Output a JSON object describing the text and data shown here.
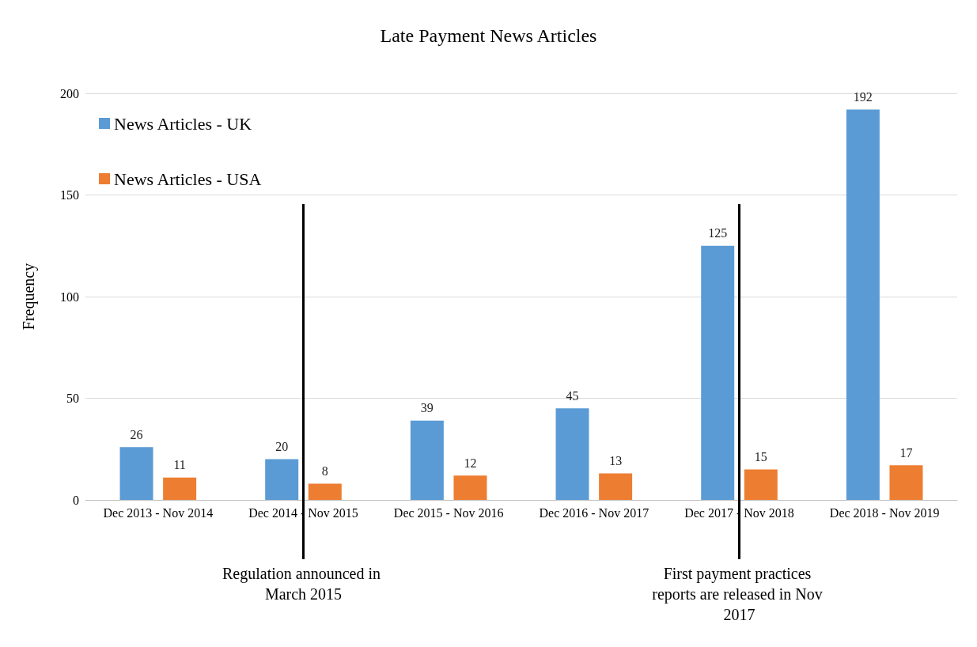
{
  "chart_data": {
    "type": "bar",
    "title": "Late Payment News Articles",
    "ylabel": "Frequency",
    "categories": [
      "Dec 2013 - Nov 2014",
      "Dec 2014 - Nov 2015",
      "Dec 2015 - Nov 2016",
      "Dec 2016 - Nov 2017",
      "Dec 2017 - Nov 2018",
      "Dec 2018 - Nov 2019"
    ],
    "series": [
      {
        "name": "News Articles - UK",
        "color": "#5b9bd5",
        "values": [
          26,
          20,
          39,
          45,
          125,
          192
        ]
      },
      {
        "name": "News Articles - USA",
        "color": "#ed7d31",
        "values": [
          11,
          8,
          12,
          13,
          15,
          17
        ]
      }
    ],
    "ylim": [
      0,
      200
    ],
    "yticks": [
      0,
      50,
      100,
      150,
      200
    ],
    "grid": "y",
    "legend": "top left",
    "data_labels": true,
    "ref_lines": [
      {
        "axis": "x",
        "value": "Dec 2014 - Nov 2015",
        "label": "Regulation announced in March 2015",
        "color": "#000000"
      },
      {
        "axis": "x",
        "value": "Dec 2017 - Nov 2018",
        "label": "First payment practices reports are released in Nov 2017",
        "color": "#000000"
      }
    ]
  }
}
